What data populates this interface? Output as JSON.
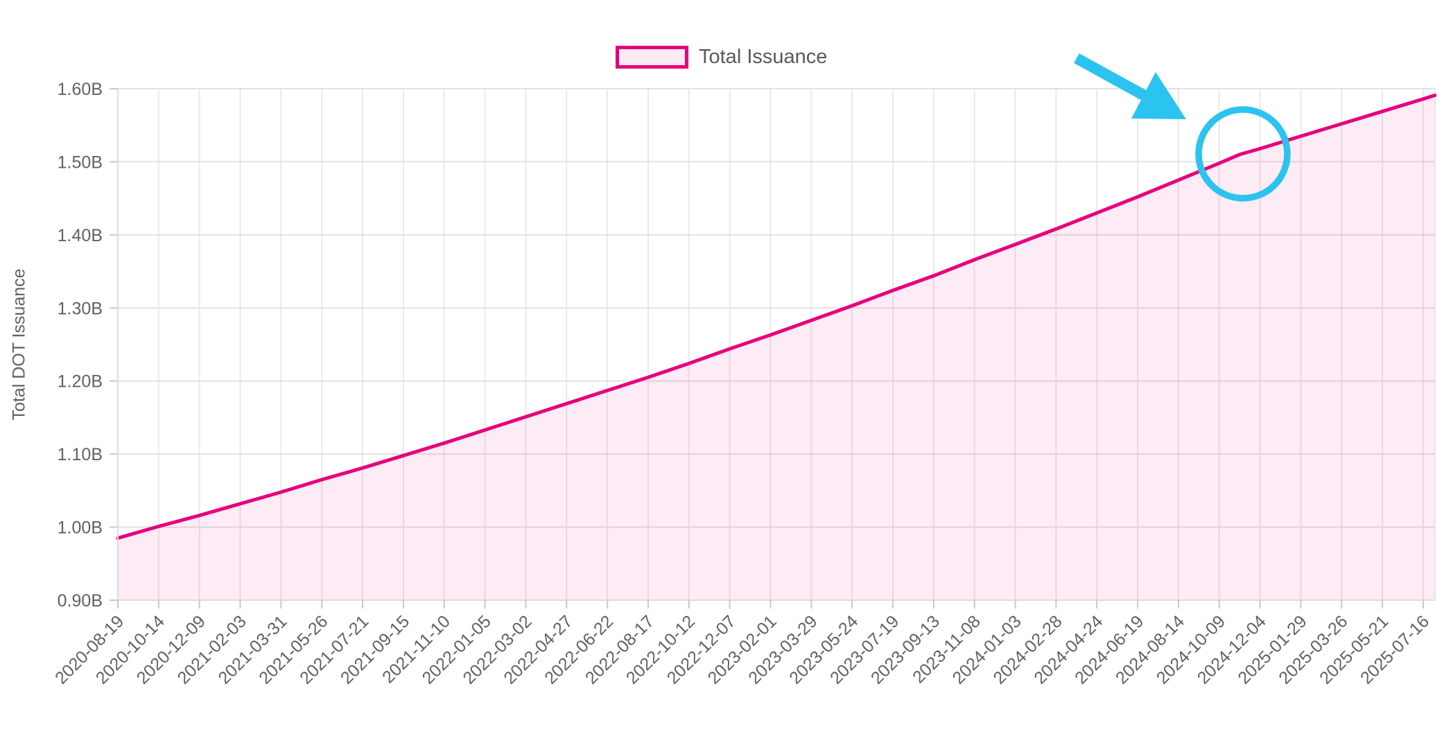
{
  "legend": {
    "label": "Total Issuance"
  },
  "colors": {
    "line": "#E6007A",
    "area_fill": "rgba(230,0,122,0.08)",
    "legend_swatch_fill": "#FDEBF4",
    "annotation": "#2BC3EF",
    "label_text": "#616161",
    "legend_text": "#595959",
    "grid_horizontal": "#e2e2e2",
    "grid_vertical": "#e9e9e9",
    "axis_line": "#dcdcdc",
    "tick_mark": "#c9c9c9"
  },
  "chart_data": {
    "type": "area",
    "series_name": "Total Issuance",
    "title": "",
    "xlabel": "",
    "ylabel": "Total DOT Issuance",
    "ylim": [
      0.9,
      1.6
    ],
    "grid": true,
    "legend_position": "top",
    "y_tick_labels": [
      "1.60B",
      "1.50B",
      "1.40B",
      "1.30B",
      "1.20B",
      "1.10B",
      "1.00B",
      "0.90B"
    ],
    "x_tick_labels": [
      "2020-08-19",
      "2020-10-14",
      "2020-12-09",
      "2021-02-03",
      "2021-03-31",
      "2021-05-26",
      "2021-07-21",
      "2021-09-15",
      "2021-11-10",
      "2022-01-05",
      "2022-03-02",
      "2022-04-27",
      "2022-06-22",
      "2022-08-17",
      "2022-10-12",
      "2022-12-07",
      "2023-02-01",
      "2023-03-29",
      "2023-05-24",
      "2023-07-19",
      "2023-09-13",
      "2023-11-08",
      "2024-01-03",
      "2024-02-28",
      "2024-04-24",
      "2024-06-19",
      "2024-08-14",
      "2024-10-09",
      "2024-12-04",
      "2025-01-29",
      "2025-03-26",
      "2025-05-21",
      "2025-07-16"
    ],
    "points": [
      {
        "date": "2020-08-19",
        "value": 0.985
      },
      {
        "date": "2020-10-14",
        "value": 1.001
      },
      {
        "date": "2020-12-09",
        "value": 1.016
      },
      {
        "date": "2021-02-03",
        "value": 1.032
      },
      {
        "date": "2021-03-31",
        "value": 1.048
      },
      {
        "date": "2021-05-26",
        "value": 1.065
      },
      {
        "date": "2021-07-21",
        "value": 1.081
      },
      {
        "date": "2021-09-15",
        "value": 1.098
      },
      {
        "date": "2021-11-10",
        "value": 1.115
      },
      {
        "date": "2022-01-05",
        "value": 1.133
      },
      {
        "date": "2022-03-02",
        "value": 1.151
      },
      {
        "date": "2022-04-27",
        "value": 1.169
      },
      {
        "date": "2022-06-22",
        "value": 1.187
      },
      {
        "date": "2022-08-17",
        "value": 1.205
      },
      {
        "date": "2022-10-12",
        "value": 1.224
      },
      {
        "date": "2022-12-07",
        "value": 1.244
      },
      {
        "date": "2023-02-01",
        "value": 1.263
      },
      {
        "date": "2023-03-29",
        "value": 1.283
      },
      {
        "date": "2023-05-24",
        "value": 1.303
      },
      {
        "date": "2023-07-19",
        "value": 1.324
      },
      {
        "date": "2023-09-13",
        "value": 1.344
      },
      {
        "date": "2023-11-08",
        "value": 1.366
      },
      {
        "date": "2024-01-03",
        "value": 1.387
      },
      {
        "date": "2024-02-28",
        "value": 1.408
      },
      {
        "date": "2024-04-24",
        "value": 1.43
      },
      {
        "date": "2024-06-19",
        "value": 1.452
      },
      {
        "date": "2024-08-14",
        "value": 1.475
      },
      {
        "date": "2024-10-09",
        "value": 1.498
      },
      {
        "date": "2024-11-06",
        "value": 1.51
      },
      {
        "date": "2024-12-04",
        "value": 1.518
      },
      {
        "date": "2025-01-29",
        "value": 1.535
      },
      {
        "date": "2025-03-26",
        "value": 1.552
      },
      {
        "date": "2025-05-21",
        "value": 1.569
      },
      {
        "date": "2025-07-16",
        "value": 1.586
      },
      {
        "date": "2025-08-01",
        "value": 1.591
      }
    ]
  }
}
